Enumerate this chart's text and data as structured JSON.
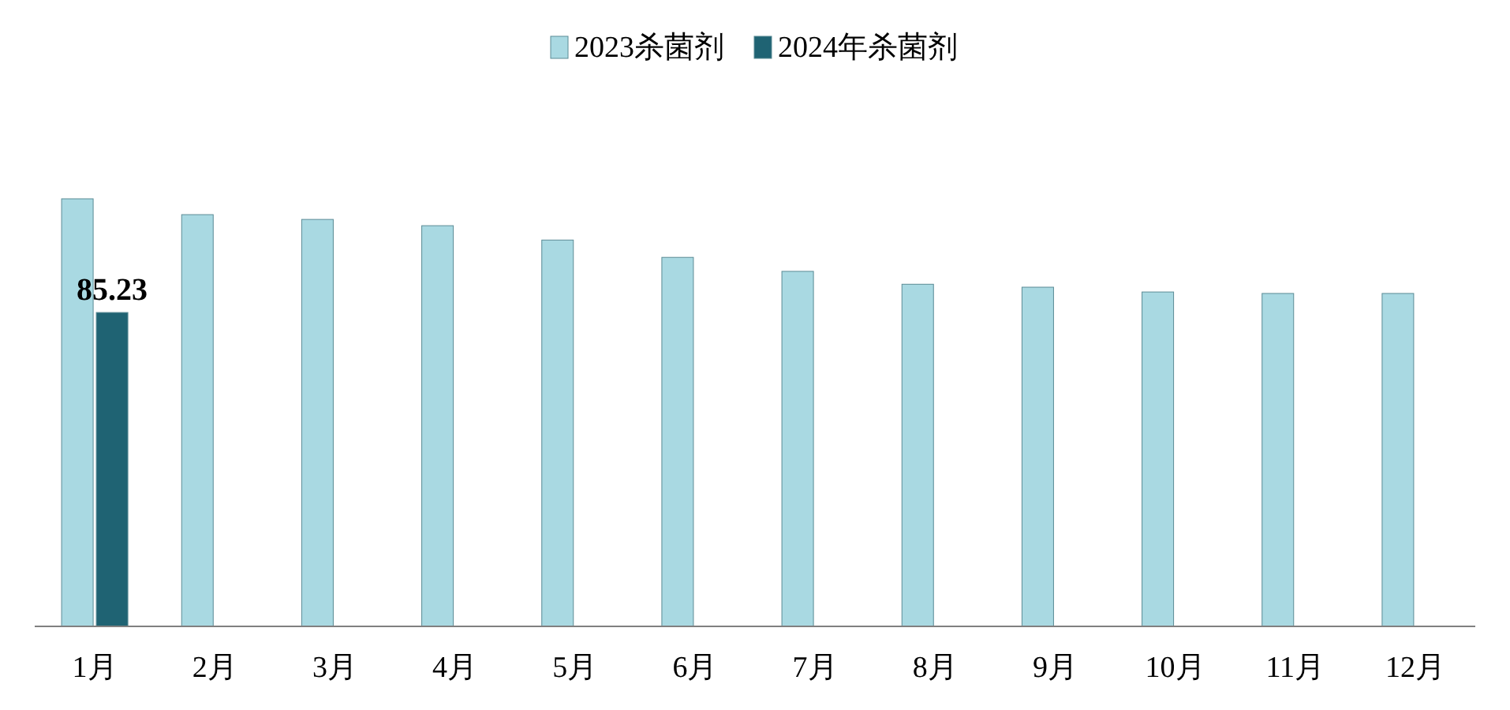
{
  "chart_data": {
    "type": "bar",
    "legend": "top",
    "categories": [
      "1月",
      "2月",
      "3月",
      "4月",
      "5月",
      "6月",
      "7月",
      "8月",
      "9月",
      "10月",
      "11月",
      "12月"
    ],
    "series": [
      {
        "name": "2023杀菌剂",
        "color": "#a9d9e2",
        "values": [
          116.1,
          111.8,
          110.5,
          108.8,
          104.9,
          100.2,
          96.4,
          92.9,
          92.1,
          90.8,
          90.4,
          90.4
        ]
      },
      {
        "name": "2024年杀菌剂",
        "color": "#1f6373",
        "values": [
          85.23,
          null,
          null,
          null,
          null,
          null,
          null,
          null,
          null,
          null,
          null,
          null
        ],
        "value_labels": [
          "85.23",
          null,
          null,
          null,
          null,
          null,
          null,
          null,
          null,
          null,
          null,
          null
        ]
      }
    ]
  }
}
